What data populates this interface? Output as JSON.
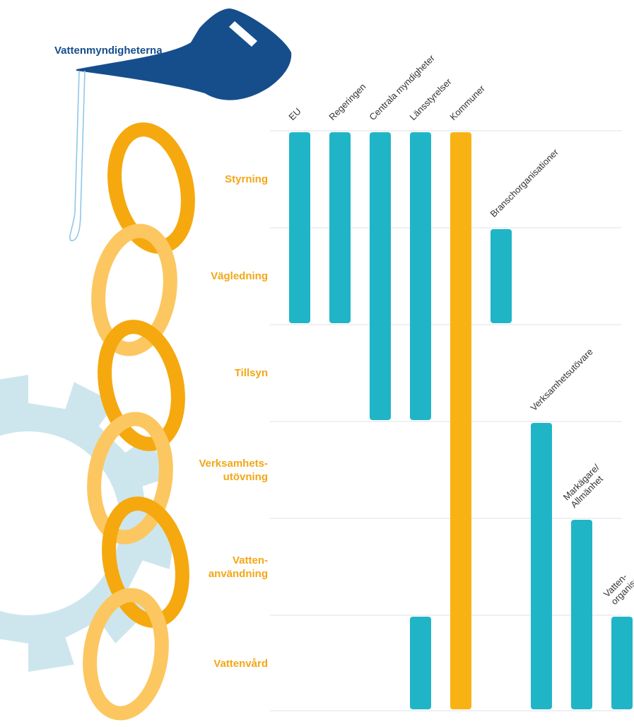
{
  "brand": "Vattenmyndigheterna",
  "colors": {
    "teal": "#1fb5c7",
    "orange": "#f9b214",
    "ring_dark": "#f5a90f",
    "ring_light": "#fcc760",
    "gear": "#cde6ee",
    "can": "#164e8c",
    "grid": "#e3e6ee",
    "row_label": "#f3a716"
  },
  "rows": [
    {
      "id": "styrning",
      "label": "Styrning"
    },
    {
      "id": "vagledning",
      "label": "Vägledning"
    },
    {
      "id": "tillsyn",
      "label": "Tillsyn"
    },
    {
      "id": "verksamhetsutovning",
      "label": "Verksamhets-\nutövning"
    },
    {
      "id": "vattenanvandning",
      "label": "Vatten-\nanvändning"
    },
    {
      "id": "vattenvard",
      "label": "Vattenvård"
    }
  ],
  "actors": [
    {
      "label": "EU",
      "rows": [
        0,
        1
      ],
      "color": "teal"
    },
    {
      "label": "Regeringen",
      "rows": [
        0,
        1
      ],
      "color": "teal"
    },
    {
      "label": "Centrala myndigheter",
      "rows": [
        0,
        2
      ],
      "color": "teal"
    },
    {
      "label": "Länsstyrelser",
      "rows": [
        0,
        2
      ],
      "color": "teal",
      "extra_rows": [
        5,
        5
      ]
    },
    {
      "label": "Kommuner",
      "rows": [
        0,
        5
      ],
      "color": "orange"
    },
    {
      "label": "Branschorganisationer",
      "rows": [
        1,
        1
      ],
      "color": "teal"
    },
    {
      "label": "Verksamhetsutövare",
      "rows": [
        3,
        5
      ],
      "color": "teal"
    },
    {
      "label": "Markägare/\nAllmänhet",
      "rows": [
        4,
        5
      ],
      "color": "teal"
    },
    {
      "label": "Vatten-\norganisationer",
      "rows": [
        5,
        5
      ],
      "color": "teal"
    }
  ]
}
